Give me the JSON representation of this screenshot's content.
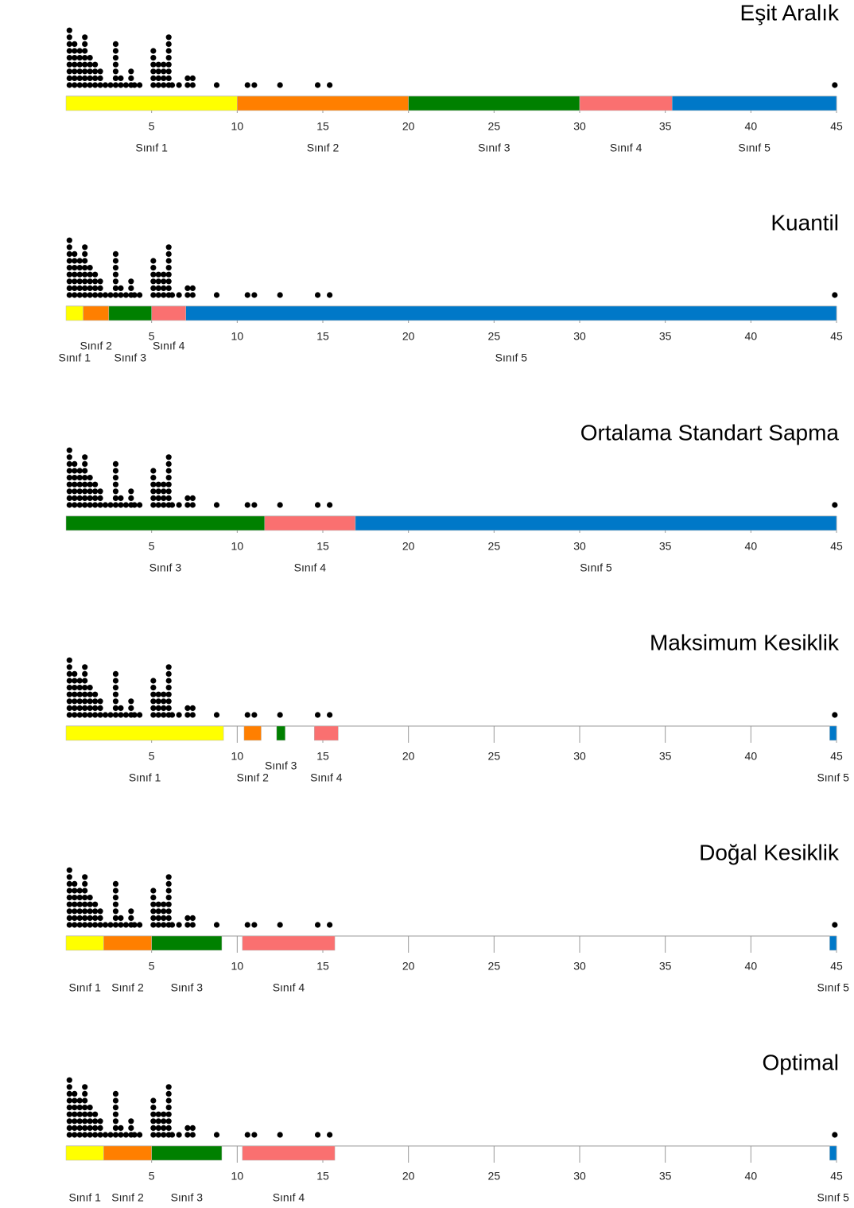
{
  "dots": {
    "x": [
      0.2,
      0.5,
      0.8,
      1.1,
      1.4,
      1.7,
      2.0,
      2.3,
      2.6,
      2.9,
      3.2,
      3.5,
      3.8,
      4.0,
      4.3,
      5.1,
      5.4,
      5.7,
      6.0,
      6.2,
      6.6,
      7.1,
      7.4,
      8.8,
      10.6,
      11.0,
      12.5,
      14.7,
      15.4,
      44.9
    ],
    "counts": [
      9,
      7,
      6,
      8,
      5,
      4,
      3,
      1,
      1,
      7,
      2,
      1,
      3,
      1,
      1,
      6,
      4,
      4,
      8,
      1,
      1,
      2,
      2,
      1,
      1,
      1,
      1,
      1,
      1,
      1
    ]
  },
  "chart_data": [
    {
      "type": "dotplot",
      "title": "Eşit Aralık",
      "xlim": [
        0,
        45
      ],
      "xticks": [
        5,
        10,
        15,
        20,
        25,
        30,
        35,
        40,
        45
      ],
      "segments": [
        {
          "name": "Sınıf 1",
          "color": "#ffff00",
          "range": [
            0,
            10
          ]
        },
        {
          "name": "Sınıf 2",
          "color": "#ff7f00",
          "range": [
            10,
            20
          ]
        },
        {
          "name": "Sınıf 3",
          "color": "#008000",
          "range": [
            20,
            30
          ]
        },
        {
          "name": "Sınıf 4",
          "color": "#fa7070",
          "range": [
            30,
            35.4
          ]
        },
        {
          "name": "Sınıf 5",
          "color": "#0078c8",
          "range": [
            35.4,
            45
          ]
        }
      ]
    },
    {
      "type": "dotplot",
      "title": "Kuantil",
      "xlim": [
        0,
        45
      ],
      "xticks": [
        5,
        10,
        15,
        20,
        25,
        30,
        35,
        40,
        45
      ],
      "segments": [
        {
          "name": "Sınıf 1",
          "color": "#ffff00",
          "range": [
            0,
            1
          ]
        },
        {
          "name": "Sınıf 2",
          "color": "#ff7f00",
          "range": [
            1,
            2.5
          ]
        },
        {
          "name": "Sınıf 3",
          "color": "#008000",
          "range": [
            2.5,
            5
          ]
        },
        {
          "name": "Sınıf 4",
          "color": "#fa7070",
          "range": [
            5,
            7
          ]
        },
        {
          "name": "Sınıf 5",
          "color": "#0078c8",
          "range": [
            7,
            45
          ]
        }
      ]
    },
    {
      "type": "dotplot",
      "title": "Ortalama Standart Sapma",
      "xlim": [
        0,
        45
      ],
      "xticks": [
        5,
        10,
        15,
        20,
        25,
        30,
        35,
        40,
        45
      ],
      "segments": [
        {
          "name": "Sınıf 3",
          "color": "#008000",
          "range": [
            0,
            11.6
          ]
        },
        {
          "name": "Sınıf 4",
          "color": "#fa7070",
          "range": [
            11.6,
            16.9
          ]
        },
        {
          "name": "Sınıf 5",
          "color": "#0078c8",
          "range": [
            16.9,
            45
          ]
        }
      ]
    },
    {
      "type": "dotplot",
      "title": "Maksimum Kesiklik",
      "xlim": [
        0,
        45
      ],
      "xticks": [
        5,
        10,
        15,
        20,
        25,
        30,
        35,
        40,
        45
      ],
      "segments": [
        {
          "name": "Sınıf 1",
          "color": "#ffff00",
          "range": [
            0,
            9.2
          ]
        },
        {
          "name": "Sınıf 2",
          "color": "#ff7f00",
          "range": [
            10.4,
            11.4
          ]
        },
        {
          "name": "Sınıf 3",
          "color": "#008000",
          "range": [
            12.3,
            12.8
          ]
        },
        {
          "name": "Sınıf 4",
          "color": "#fa7070",
          "range": [
            14.5,
            15.9
          ]
        },
        {
          "name": "Sınıf 5",
          "color": "#0078c8",
          "range": [
            44.6,
            45
          ]
        }
      ]
    },
    {
      "type": "dotplot",
      "title": "Doğal Kesiklik",
      "xlim": [
        0,
        45
      ],
      "xticks": [
        5,
        10,
        15,
        20,
        25,
        30,
        35,
        40,
        45
      ],
      "segments": [
        {
          "name": "Sınıf 1",
          "color": "#ffff00",
          "range": [
            0,
            2.2
          ]
        },
        {
          "name": "Sınıf 2",
          "color": "#ff7f00",
          "range": [
            2.2,
            5
          ]
        },
        {
          "name": "Sınıf 3",
          "color": "#008000",
          "range": [
            5,
            9.1
          ]
        },
        {
          "name": "Sınıf 4",
          "color": "#fa7070",
          "range": [
            10.3,
            15.7
          ]
        },
        {
          "name": "Sınıf 5",
          "color": "#0078c8",
          "range": [
            44.6,
            45
          ]
        }
      ]
    },
    {
      "type": "dotplot",
      "title": "Optimal",
      "xlim": [
        0,
        45
      ],
      "xticks": [
        5,
        10,
        15,
        20,
        25,
        30,
        35,
        40,
        45
      ],
      "segments": [
        {
          "name": "Sınıf 1",
          "color": "#ffff00",
          "range": [
            0,
            2.2
          ]
        },
        {
          "name": "Sınıf 2",
          "color": "#ff7f00",
          "range": [
            2.2,
            5
          ]
        },
        {
          "name": "Sınıf 3",
          "color": "#008000",
          "range": [
            5,
            9.1
          ]
        },
        {
          "name": "Sınıf 4",
          "color": "#fa7070",
          "range": [
            10.3,
            15.7
          ]
        },
        {
          "name": "Sınıf 5",
          "color": "#0078c8",
          "range": [
            44.6,
            45
          ]
        }
      ]
    }
  ]
}
